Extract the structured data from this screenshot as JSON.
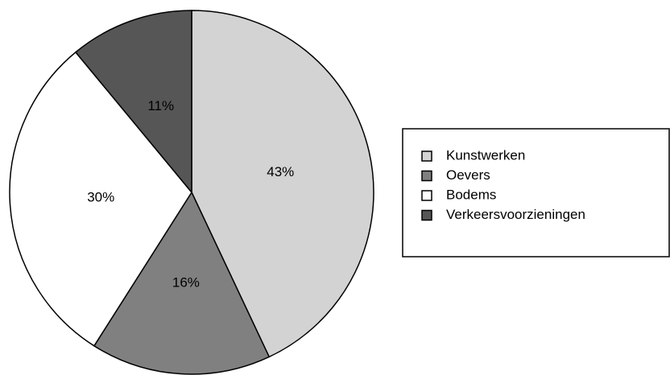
{
  "chart_data": {
    "type": "pie",
    "categories": [
      "Kunstwerken",
      "Oevers",
      "Bodems",
      "Verkeersvoorzieningen"
    ],
    "values": [
      43,
      16,
      30,
      11
    ],
    "value_labels": [
      "43%",
      "16%",
      "30%",
      "11%"
    ],
    "colors": [
      "#d3d3d3",
      "#808080",
      "#ffffff",
      "#565656"
    ],
    "legend": "right"
  }
}
